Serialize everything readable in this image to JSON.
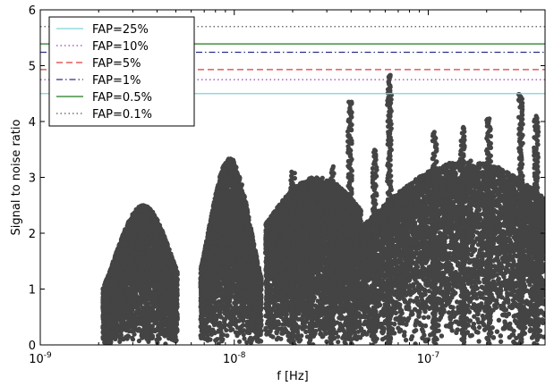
{
  "chart_data": {
    "type": "scatter",
    "title": "",
    "xlabel": "f [Hz]",
    "ylabel": "Signal to noise ratio",
    "xscale": "log",
    "xlim": [
      1e-09,
      4e-07
    ],
    "ylim": [
      0,
      6
    ],
    "grid": false,
    "legend_position": "top-left",
    "x_ticks": [
      {
        "value": 1e-09,
        "base": "10",
        "exp": "-9"
      },
      {
        "value": 1e-08,
        "base": "10",
        "exp": "-8"
      },
      {
        "value": 1e-07,
        "base": "10",
        "exp": "-7"
      }
    ],
    "y_ticks": [
      {
        "value": 0,
        "label": "0"
      },
      {
        "value": 1,
        "label": "1"
      },
      {
        "value": 2,
        "label": "2"
      },
      {
        "value": 3,
        "label": "3"
      },
      {
        "value": 4,
        "label": "4"
      },
      {
        "value": 5,
        "label": "5"
      },
      {
        "value": 6,
        "label": "6"
      }
    ],
    "thresholds": [
      {
        "name": "FAP=25%",
        "value": 4.5,
        "color": "#7fd3d8",
        "dash": "solid"
      },
      {
        "name": "FAP=10%",
        "value": 4.75,
        "color": "#9b3fb8",
        "dash": "dotted"
      },
      {
        "name": "FAP=5%",
        "value": 4.93,
        "color": "#e03a3a",
        "dash": "dashed"
      },
      {
        "name": "FAP=1%",
        "value": 5.24,
        "color": "#2b2f8a",
        "dash": "dashdot"
      },
      {
        "name": "FAP=0.5%",
        "value": 5.39,
        "color": "#1f7a1f",
        "dash": "solid"
      },
      {
        "name": "FAP=0.1%",
        "value": 5.7,
        "color": "#555555",
        "dash": "dotted"
      }
    ],
    "point_color": "#444444",
    "clusters": [
      {
        "x_range": [
          2.1e-09,
          5.1e-09
        ],
        "center": 3.4e-09,
        "peak": 2.5,
        "sigma": 0.15,
        "base": 0.1
      },
      {
        "x_range": [
          6.7e-09,
          1.38e-08
        ],
        "center": 9.5e-09,
        "peak": 3.35,
        "sigma": 0.11,
        "base": 0.1
      },
      {
        "x_range": [
          1.45e-08,
          4.5e-08
        ],
        "center": 2.7e-08,
        "peak": 3.0,
        "sigma": 0.32,
        "base": 0.25
      },
      {
        "x_range": [
          4.5e-08,
          4e-07
        ],
        "center": 1.6e-07,
        "peak": 3.3,
        "sigma": 0.55,
        "base": 0.3
      }
    ],
    "spikes": [
      {
        "x": 3.95e-08,
        "y": 4.35
      },
      {
        "x": 6.3e-08,
        "y": 4.85
      },
      {
        "x": 1.08e-07,
        "y": 3.82
      },
      {
        "x": 1.5e-07,
        "y": 3.9
      },
      {
        "x": 2.05e-07,
        "y": 4.06
      },
      {
        "x": 3e-07,
        "y": 4.5
      },
      {
        "x": 3.6e-07,
        "y": 4.1
      },
      {
        "x": 2e-08,
        "y": 3.1
      },
      {
        "x": 2.5e-08,
        "y": 3.0
      },
      {
        "x": 3.2e-08,
        "y": 3.2
      },
      {
        "x": 5.3e-08,
        "y": 3.5
      }
    ]
  }
}
